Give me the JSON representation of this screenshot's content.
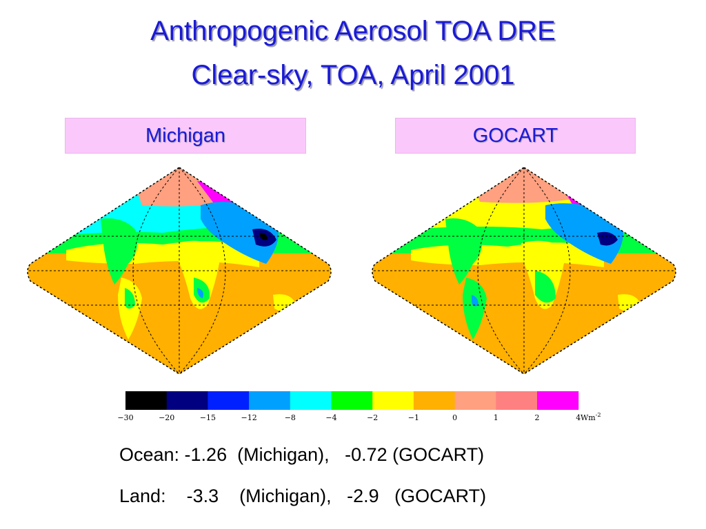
{
  "title": {
    "line1": "Anthropogenic Aerosol TOA DRE",
    "line2": "Clear-sky, TOA, April 2001"
  },
  "panels": [
    {
      "label": "Michigan"
    },
    {
      "label": "GOCART"
    }
  ],
  "colorbar": {
    "unit": "Wm",
    "unit_superscript": "-2",
    "ticks": [
      "−30",
      "−20",
      "−15",
      "−12",
      "−8",
      "−4",
      "−2",
      "−1",
      "0",
      "1",
      "2",
      "4"
    ],
    "colors": [
      "#000000",
      "#000080",
      "#0020ff",
      "#00a0ff",
      "#00ffff",
      "#00ff00",
      "#ffff00",
      "#ffb000",
      "#ffa080",
      "#ff8080",
      "#ff00ff"
    ]
  },
  "stats": {
    "ocean": "Ocean: -1.26  (Michigan),   -0.72 (GOCART)",
    "land": "Land:    -3.3    (Michigan),   -2.9   (GOCART)"
  }
}
